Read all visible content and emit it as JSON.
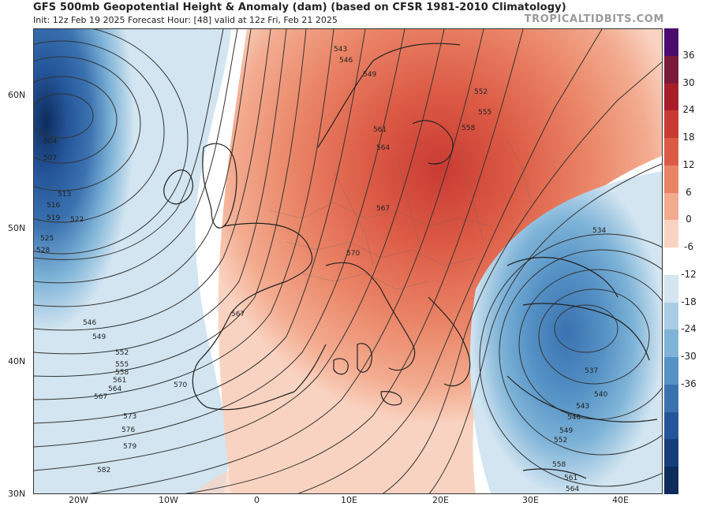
{
  "header": {
    "title": "GFS 500mb Geopotential Height & Anomaly (dam) (based on CFSR 1981-2010 Climatology)",
    "subtitle": "Init: 12z Feb 19 2025   Forecast Hour: [48]   valid at 12z Fri, Feb 21 2025",
    "brand": "TROPICALTIDBITS.COM"
  },
  "axes": {
    "lat_labels": [
      "60N",
      "50N",
      "40N",
      "30N"
    ],
    "lon_labels": [
      "20W",
      "10W",
      "0",
      "10E",
      "20E",
      "30E",
      "40E"
    ]
  },
  "colorbar": {
    "labels": [
      "36",
      "30",
      "24",
      "18",
      "12",
      "6",
      "0",
      "-6",
      "-12",
      "-18",
      "-24",
      "-30",
      "-36"
    ],
    "colors": [
      "#4b0b6e",
      "#7a1a3a",
      "#a81d2a",
      "#c93a33",
      "#dc5b45",
      "#ea8466",
      "#f3ab8f",
      "#f9d3c1",
      "#ffffff",
      "#d2e5f1",
      "#a9cde4",
      "#7fb4d8",
      "#5592c5",
      "#3a72b0",
      "#24559a",
      "#163e7d",
      "#0d2c5c"
    ]
  },
  "contour_labels": {
    "west": [
      "504",
      "507",
      "513",
      "516",
      "519",
      "522",
      "525",
      "528",
      "546",
      "549",
      "552",
      "555",
      "558",
      "561",
      "564",
      "567",
      "570",
      "573",
      "576",
      "579",
      "582"
    ],
    "central": [
      "543",
      "546",
      "549",
      "552",
      "555",
      "558",
      "561",
      "564",
      "567",
      "570",
      "567"
    ],
    "east": [
      "534",
      "537",
      "540",
      "543",
      "546",
      "549",
      "552",
      "558",
      "561",
      "564"
    ]
  },
  "icons": {
    "map_graphic": "geopotential-anomaly-map"
  }
}
